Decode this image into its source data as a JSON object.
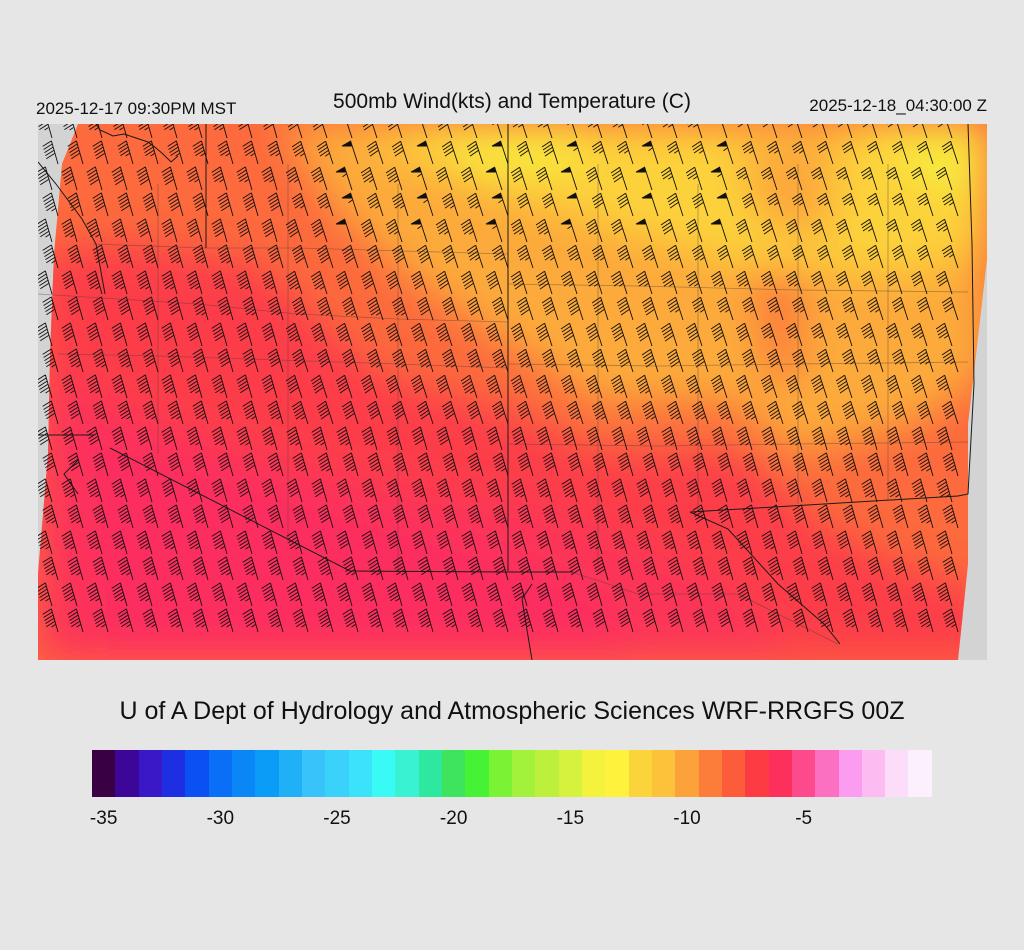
{
  "header": {
    "local_time": "2025-12-17 09:30PM MST",
    "title": "500mb Wind(kts) and Temperature (C)",
    "utc_time": "2025-12-18_04:30:00 Z"
  },
  "footer": {
    "credit": "U of A Dept of Hydrology and Atmospheric Sciences WRF-RRGFS 00Z"
  },
  "colorbar": {
    "colors": [
      "#3a0044",
      "#3c0798",
      "#3a18c8",
      "#1e2ee2",
      "#0a50f2",
      "#0a6ef6",
      "#0a86f6",
      "#0a9cf6",
      "#20b0f6",
      "#38c4fa",
      "#3ad2fa",
      "#3ae2fa",
      "#3afaf6",
      "#38f2d2",
      "#2ee8a0",
      "#3ee45e",
      "#46f234",
      "#7cf234",
      "#a2f23c",
      "#bcf03c",
      "#d6f23c",
      "#f4f23c",
      "#fef23c",
      "#fad43a",
      "#fcc23a",
      "#fca23a",
      "#fc7c3a",
      "#fc5c3a",
      "#fc3c42",
      "#fc305a",
      "#fc4a8c",
      "#fc70c2",
      "#fc9cf0",
      "#fcbcf2",
      "#fcdcf8",
      "#fcf0fc"
    ],
    "min_value": -35.5,
    "step": 1,
    "tick_labels": [
      "-35",
      "-30",
      "-25",
      "-20",
      "-15",
      "-10",
      "-5"
    ]
  },
  "map": {
    "field_name": "500mb temperature",
    "region": "western-us",
    "background": "#d3d3d3"
  }
}
